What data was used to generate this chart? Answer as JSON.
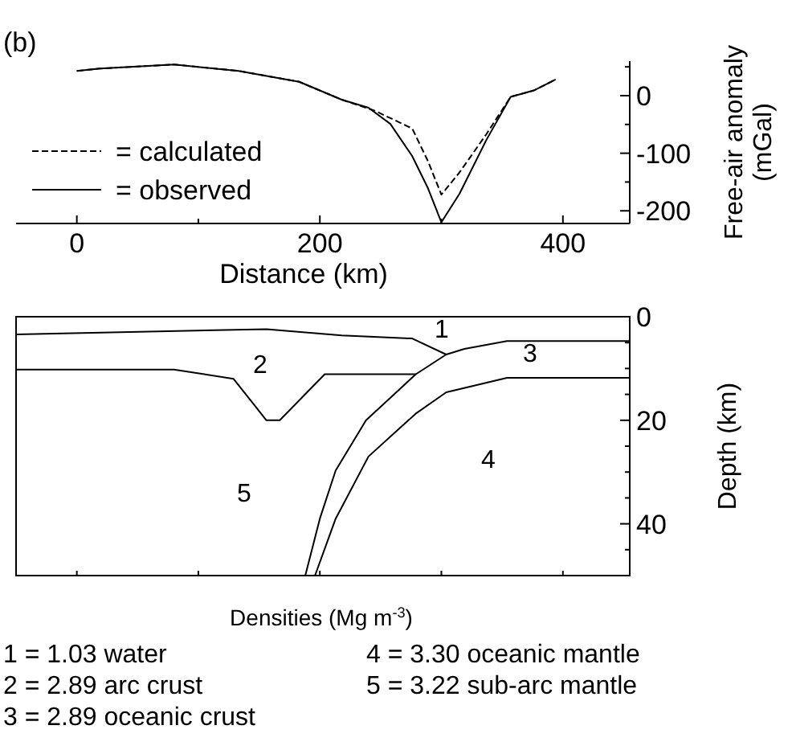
{
  "chart_data": [
    {
      "type": "line",
      "title": "(b)",
      "xlabel": "Distance (km)",
      "ylabel": "Free-air anomaly (mGal)",
      "xlim": [
        -50,
        455
      ],
      "xticks": [
        0,
        {
          "value": 100,
          "label": null
        },
        200,
        {
          "value": 300,
          "label": null
        },
        400
      ],
      "ylim": [
        -222,
        60
      ],
      "yticks": [
        {
          "value": -150,
          "label": null
        },
        -200,
        -100,
        {
          "value": -50,
          "label": null
        },
        0,
        {
          "value": 50,
          "label": null
        }
      ],
      "legend": "left",
      "grid": false,
      "series": [
        {
          "name": "= calculated",
          "color": "#000000",
          "line_style": "dashed",
          "x": [
            0,
            19,
            80,
            133,
            183,
            218,
            245,
            276,
            289,
            300,
            315,
            337,
            357,
            376,
            394
          ],
          "values": [
            43,
            47,
            54,
            43,
            24,
            -7,
            -26,
            -57,
            -114,
            -172,
            -133,
            -67,
            -2,
            9,
            28
          ]
        },
        {
          "name": "= observed",
          "color": "#000000",
          "line_style": "solid",
          "x": [
            0,
            19,
            80,
            133,
            183,
            218,
            240,
            258,
            276,
            289,
            300,
            315,
            337,
            357,
            376,
            394
          ],
          "values": [
            43,
            47,
            54,
            43,
            24,
            -7,
            -21,
            -49,
            -105,
            -161,
            -220,
            -170,
            -77,
            -2,
            9,
            28
          ]
        }
      ]
    },
    {
      "type": "line",
      "ylabel": "Depth (km)",
      "tick_labels": "y",
      "grid": false,
      "xlim": [
        -50,
        455
      ],
      "xticks": [
        {
          "value": 0,
          "label": null
        },
        {
          "value": 100,
          "label": null
        },
        {
          "value": 200,
          "label": null
        },
        {
          "value": 300,
          "label": null
        },
        {
          "value": 400,
          "label": null
        }
      ],
      "ylim": [
        50,
        0
      ],
      "yticks": [
        0,
        {
          "value": 5,
          "label": null
        },
        {
          "value": 10,
          "label": null
        },
        {
          "value": 15,
          "label": null
        },
        20,
        {
          "value": 25,
          "label": null
        },
        {
          "value": 30,
          "label": null
        },
        {
          "value": 35,
          "label": null
        },
        40,
        {
          "value": 45,
          "label": null
        }
      ],
      "series": [
        {
          "color": "#000000",
          "x": [
            -50,
            156,
            218,
            276,
            304,
            319,
            354,
            455
          ],
          "values": [
            3.4,
            2.4,
            3.6,
            4.2,
            7.3,
            6.2,
            4.7,
            4.7
          ]
        },
        {
          "color": "#000000",
          "x": [
            -50,
            80,
            129,
            156,
            167,
            204,
            279
          ],
          "values": [
            10.2,
            10.2,
            12,
            20,
            20,
            11.1,
            11.1
          ]
        },
        {
          "color": "#000000",
          "x": [
            188,
            200,
            213,
            238,
            279,
            304
          ],
          "values": [
            50,
            39,
            29.7,
            20,
            11.1,
            7.3
          ]
        },
        {
          "color": "#000000",
          "x": [
            196,
            213,
            240,
            279,
            304,
            354,
            455
          ],
          "values": [
            50,
            39,
            27,
            18.7,
            14.6,
            11.8,
            11.8
          ]
        }
      ],
      "annotations": [
        "1",
        "2",
        "3",
        "4",
        "5",
        "Densities (Mg m$^{-3}$)",
        "1 = 1.03 water",
        "2 = 2.89 arc crust",
        "3 = 2.89 oceanic crust",
        "4 = 3.30 oceanic mantle",
        "5 = 3.22 sub-arc mantle"
      ]
    }
  ]
}
